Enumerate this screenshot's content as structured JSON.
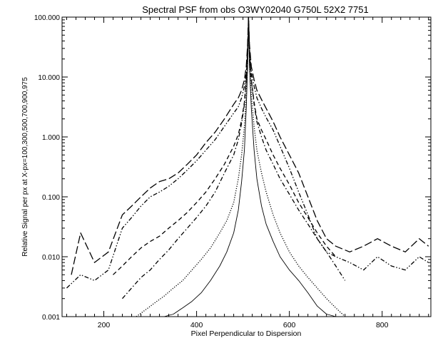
{
  "chart_data": {
    "type": "line",
    "title": "Spectral PSF from obs O3WY02040 G750L 52X2 7751",
    "xlabel": "Pixel Perpendicular to Dispersion",
    "ylabel": "Relative Signal per px at X-px=100,300,500,700,900,975",
    "xlim": [
      110,
      905
    ],
    "ylim": [
      0.001,
      100.0
    ],
    "yscale": "log",
    "grid": false,
    "xticks": [
      {
        "value": 200,
        "label": "200"
      },
      {
        "value": 400,
        "label": "400"
      },
      {
        "value": 600,
        "label": "600"
      },
      {
        "value": 800,
        "label": "800"
      }
    ],
    "yticks": [
      {
        "value": 0.001,
        "label": "0.001"
      },
      {
        "value": 0.01,
        "label": "0.010"
      },
      {
        "value": 0.1,
        "label": "0.100"
      },
      {
        "value": 1,
        "label": "1.000"
      },
      {
        "value": 10,
        "label": "10.000"
      },
      {
        "value": 100,
        "label": "100.000"
      }
    ],
    "series": [
      {
        "style": "solid",
        "x": [
          330,
          350,
          370,
          390,
          410,
          430,
          450,
          465,
          480,
          490,
          497,
          503,
          507,
          510,
          512,
          514,
          518,
          524,
          530,
          540,
          550,
          565,
          580,
          600,
          620,
          640,
          660,
          680,
          700
        ],
        "y": [
          0.001,
          0.0011,
          0.0014,
          0.0018,
          0.0025,
          0.004,
          0.007,
          0.012,
          0.025,
          0.06,
          0.18,
          0.6,
          3,
          15,
          80,
          15,
          3,
          0.6,
          0.2,
          0.07,
          0.035,
          0.018,
          0.01,
          0.006,
          0.004,
          0.0025,
          0.0015,
          0.0011,
          0.001
        ]
      },
      {
        "style": "dotted",
        "x": [
          270,
          290,
          310,
          330,
          350,
          370,
          390,
          410,
          430,
          450,
          465,
          480,
          490,
          497,
          503,
          507,
          510,
          512,
          514,
          518,
          524,
          530,
          540,
          550,
          565,
          580,
          600,
          620,
          640,
          660,
          680,
          700,
          720
        ],
        "y": [
          0.001,
          0.0013,
          0.0017,
          0.0022,
          0.003,
          0.004,
          0.006,
          0.009,
          0.014,
          0.025,
          0.04,
          0.08,
          0.2,
          0.5,
          1.5,
          5,
          18,
          90,
          18,
          5,
          1.5,
          0.6,
          0.25,
          0.12,
          0.05,
          0.025,
          0.012,
          0.007,
          0.0045,
          0.003,
          0.002,
          0.0014,
          0.001
        ]
      },
      {
        "style": "dash-dot",
        "x": [
          240,
          260,
          280,
          300,
          320,
          340,
          360,
          380,
          400,
          420,
          440,
          460,
          480,
          490,
          497,
          503,
          507,
          510,
          512,
          514,
          518,
          524,
          530,
          540,
          550,
          565,
          580,
          600,
          620,
          640,
          660,
          680,
          700,
          720
        ],
        "y": [
          0.002,
          0.003,
          0.0045,
          0.006,
          0.009,
          0.013,
          0.02,
          0.03,
          0.045,
          0.07,
          0.12,
          0.25,
          0.5,
          0.9,
          1.7,
          3.5,
          9,
          25,
          95,
          25,
          9,
          3.5,
          1.8,
          1,
          0.6,
          0.35,
          0.2,
          0.11,
          0.06,
          0.035,
          0.02,
          0.012,
          0.007,
          0.004
        ]
      },
      {
        "style": "dashed",
        "x": [
          220,
          240,
          260,
          280,
          300,
          320,
          340,
          360,
          380,
          400,
          420,
          440,
          460,
          480,
          490,
          497,
          503,
          507,
          510,
          512,
          514,
          518,
          524,
          530,
          540,
          550,
          565,
          580,
          600,
          620,
          640,
          660,
          680,
          700
        ],
        "y": [
          0.005,
          0.007,
          0.01,
          0.014,
          0.018,
          0.022,
          0.03,
          0.04,
          0.055,
          0.08,
          0.12,
          0.2,
          0.35,
          0.7,
          1.1,
          1.9,
          3.8,
          9,
          25,
          97,
          25,
          9,
          3.8,
          2,
          1.3,
          0.9,
          0.5,
          0.3,
          0.16,
          0.08,
          0.045,
          0.025,
          0.015,
          0.01
        ]
      },
      {
        "style": "dash-dot-dot",
        "x": [
          120,
          150,
          180,
          210,
          240,
          260,
          280,
          300,
          320,
          340,
          360,
          380,
          400,
          420,
          440,
          460,
          480,
          490,
          497,
          503,
          507,
          510,
          512,
          514,
          518,
          524,
          530,
          540,
          550,
          565,
          580,
          600,
          620,
          640,
          660,
          680,
          700,
          730,
          760,
          790,
          820,
          850,
          880,
          900
        ],
        "y": [
          0.003,
          0.005,
          0.004,
          0.006,
          0.03,
          0.045,
          0.07,
          0.1,
          0.12,
          0.15,
          0.2,
          0.28,
          0.4,
          0.6,
          0.9,
          1.5,
          2.5,
          3.2,
          4.5,
          7,
          12,
          30,
          99,
          30,
          12,
          7,
          4.5,
          3,
          2.1,
          1.3,
          0.7,
          0.3,
          0.12,
          0.05,
          0.02,
          0.012,
          0.01,
          0.008,
          0.006,
          0.01,
          0.007,
          0.006,
          0.01,
          0.008
        ]
      },
      {
        "style": "long-dash",
        "x": [
          130,
          150,
          180,
          210,
          240,
          260,
          280,
          300,
          320,
          340,
          360,
          380,
          400,
          420,
          440,
          460,
          480,
          490,
          497,
          503,
          507,
          510,
          512,
          514,
          518,
          524,
          530,
          540,
          550,
          565,
          580,
          600,
          620,
          640,
          660,
          680,
          700,
          730,
          760,
          790,
          820,
          850,
          880,
          900
        ],
        "y": [
          0.005,
          0.025,
          0.008,
          0.012,
          0.05,
          0.07,
          0.1,
          0.14,
          0.18,
          0.2,
          0.25,
          0.35,
          0.5,
          0.8,
          1.2,
          2,
          3.5,
          4.5,
          6,
          9,
          15,
          35,
          100,
          35,
          15,
          9,
          6,
          4.2,
          3,
          1.8,
          1,
          0.5,
          0.25,
          0.1,
          0.04,
          0.02,
          0.015,
          0.012,
          0.015,
          0.02,
          0.015,
          0.012,
          0.02,
          0.015
        ]
      }
    ]
  }
}
